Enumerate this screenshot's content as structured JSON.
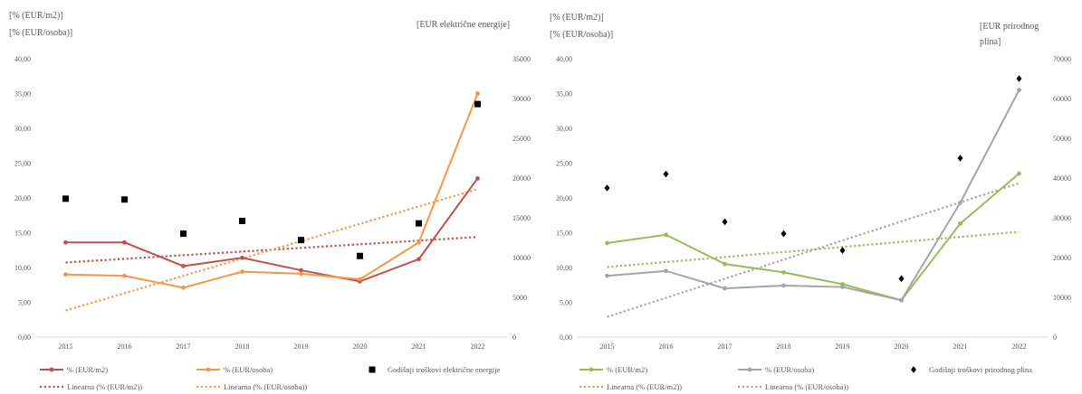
{
  "chart_data": [
    {
      "type": "line",
      "categories": [
        "2015",
        "2016",
        "2017",
        "2018",
        "2019",
        "2020",
        "2021",
        "2022"
      ],
      "ylabel": [
        "[% (EUR/m2)]",
        "[% (EUR/osoba)]"
      ],
      "y2label": "[EUR električne energije]",
      "ylim": [
        0,
        40
      ],
      "y_ticks": [
        "0,00",
        "5,00",
        "10,00",
        "15,00",
        "20,00",
        "25,00",
        "30,00",
        "35,00",
        "40,00"
      ],
      "y2lim": [
        0,
        35000
      ],
      "y2_ticks": [
        "0",
        "5000",
        "10000",
        "15000",
        "20000",
        "25000",
        "30000",
        "35000"
      ],
      "grid": false,
      "legend_position": "bottom",
      "series": [
        {
          "name": "% (EUR/m2)",
          "type": "line",
          "axis": "left",
          "color": "#c0504d",
          "marker": "circle",
          "values": [
            13.6,
            13.6,
            10.2,
            11.4,
            9.6,
            8.0,
            11.2,
            22.8
          ]
        },
        {
          "name": "% (EUR/osoba)",
          "type": "line",
          "axis": "left",
          "color": "#f79646",
          "marker": "circle",
          "values": [
            9.0,
            8.8,
            7.1,
            9.4,
            9.1,
            8.3,
            13.6,
            35.0
          ]
        },
        {
          "name": "Godišnji troškovi električne energije",
          "type": "scatter",
          "axis": "right",
          "color": "#000000",
          "marker": "square",
          "values": [
            17400,
            17300,
            13000,
            14600,
            12200,
            10200,
            14300,
            29300
          ]
        },
        {
          "name": "Linearna (% (EUR/m2))",
          "type": "trend",
          "axis": "left",
          "color": "#c0504d",
          "target": 0
        },
        {
          "name": "Linearna (% (EUR/osoba))",
          "type": "trend",
          "axis": "left",
          "color": "#f79646",
          "target": 1
        }
      ]
    },
    {
      "type": "line",
      "categories": [
        "2015",
        "2016",
        "2017",
        "2018",
        "2019",
        "2020",
        "2021",
        "2022"
      ],
      "ylabel": [
        "[% (EUR/m2)]",
        "[% (EUR/osoba)]"
      ],
      "y2label": "[EUR prirodnog plina]",
      "ylim": [
        0,
        40
      ],
      "y_ticks": [
        "0,00",
        "5,00",
        "10,00",
        "15,00",
        "20,00",
        "25,00",
        "30,00",
        "35,00",
        "40,00"
      ],
      "y2lim": [
        0,
        70000
      ],
      "y2_ticks": [
        "0",
        "10000",
        "20000",
        "30000",
        "40000",
        "50000",
        "60000",
        "70000"
      ],
      "grid": false,
      "legend_position": "bottom",
      "series": [
        {
          "name": "% (EUR/m2)",
          "type": "line",
          "axis": "left",
          "color": "#9bbb59",
          "marker": "circle",
          "values": [
            13.5,
            14.7,
            10.5,
            9.3,
            7.6,
            5.3,
            16.3,
            23.5
          ]
        },
        {
          "name": "% (EUR/osoba)",
          "type": "line",
          "axis": "left",
          "color": "#a5a5a5",
          "marker": "circle",
          "values": [
            8.8,
            9.5,
            7.0,
            7.4,
            7.2,
            5.3,
            19.3,
            35.5
          ]
        },
        {
          "name": "Godišnji troškovi prirodnog plina",
          "type": "scatter",
          "axis": "right",
          "color": "#000000",
          "marker": "diamond",
          "values": [
            37500,
            41000,
            29000,
            26000,
            21800,
            14700,
            45000,
            65000
          ]
        },
        {
          "name": "Linearna (% (EUR/m2))",
          "type": "trend",
          "axis": "left",
          "color": "#9bbb59",
          "target": 0
        },
        {
          "name": "Linearna (% (EUR/osoba))",
          "type": "trend",
          "axis": "left",
          "color": "#a5a5a5",
          "target": 1
        }
      ]
    }
  ]
}
